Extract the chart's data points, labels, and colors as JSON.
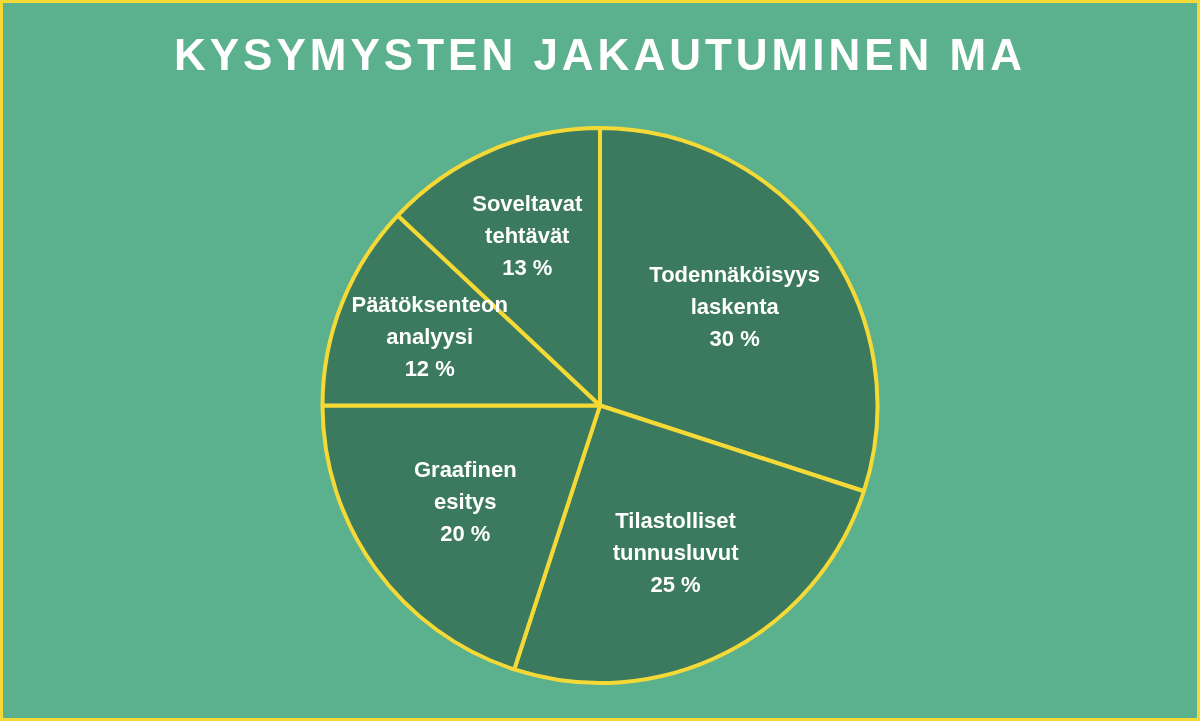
{
  "chart_data": {
    "type": "pie",
    "title": "KYSYMYSTEN JAKAUTUMINEN MA",
    "categories": [
      "Todennäköisyys laskenta",
      "Tilastolliset tunnusluvut",
      "Graafinen esitys",
      "Päätöksenteon analyysi",
      "Soveltavat tehtävät"
    ],
    "values": [
      30,
      25,
      20,
      12,
      13
    ],
    "colors": [
      "#3b7a5f",
      "#3b7a5f",
      "#3b7a5f",
      "#3b7a5f",
      "#3b7a5f"
    ],
    "value_labels": [
      "30 %",
      "25 %",
      "20 %",
      "12 %",
      "13 %"
    ],
    "legend": false
  }
}
